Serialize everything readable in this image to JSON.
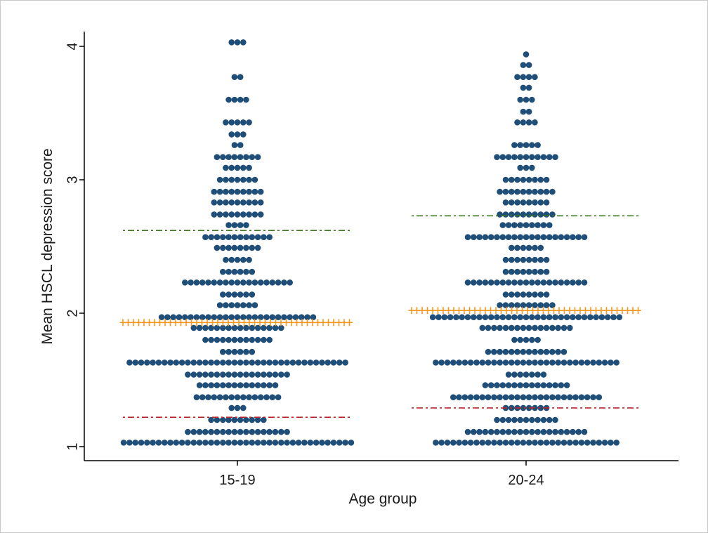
{
  "chart_data": {
    "type": "scatter",
    "subtype": "dot-strip",
    "title": "",
    "xlabel": "Age group",
    "ylabel": "Mean HSCL depression score",
    "ylim": [
      1,
      4
    ],
    "yticks": [
      1,
      2,
      3,
      4
    ],
    "categories": [
      "15-19",
      "20-24"
    ],
    "grid": false,
    "legend": "none",
    "colors": {
      "dots": "#1f4e79",
      "median_marker": "#f5961e",
      "upper_reference": "#3a7a1f",
      "lower_reference": "#b5282a",
      "axis": "#000000"
    },
    "groups": [
      {
        "category": "15-19",
        "median": 1.93,
        "upper_line": 2.62,
        "lower_line": 1.22,
        "dot_rows": [
          {
            "y": 1.03,
            "count": 40
          },
          {
            "y": 1.11,
            "count": 18
          },
          {
            "y": 1.2,
            "count": 10
          },
          {
            "y": 1.29,
            "count": 3
          },
          {
            "y": 1.37,
            "count": 15
          },
          {
            "y": 1.46,
            "count": 14
          },
          {
            "y": 1.54,
            "count": 18
          },
          {
            "y": 1.63,
            "count": 38
          },
          {
            "y": 1.71,
            "count": 6
          },
          {
            "y": 1.8,
            "count": 12
          },
          {
            "y": 1.89,
            "count": 16
          },
          {
            "y": 1.97,
            "count": 27
          },
          {
            "y": 2.06,
            "count": 7
          },
          {
            "y": 2.14,
            "count": 6
          },
          {
            "y": 2.23,
            "count": 19
          },
          {
            "y": 2.31,
            "count": 6
          },
          {
            "y": 2.4,
            "count": 5
          },
          {
            "y": 2.49,
            "count": 8
          },
          {
            "y": 2.57,
            "count": 12
          },
          {
            "y": 2.66,
            "count": 4
          },
          {
            "y": 2.74,
            "count": 9
          },
          {
            "y": 2.83,
            "count": 9
          },
          {
            "y": 2.91,
            "count": 9
          },
          {
            "y": 3.0,
            "count": 7
          },
          {
            "y": 3.09,
            "count": 5
          },
          {
            "y": 3.17,
            "count": 8
          },
          {
            "y": 3.26,
            "count": 2
          },
          {
            "y": 3.34,
            "count": 3
          },
          {
            "y": 3.43,
            "count": 5
          },
          {
            "y": 3.6,
            "count": 4
          },
          {
            "y": 3.77,
            "count": 2
          },
          {
            "y": 4.03,
            "count": 3
          }
        ]
      },
      {
        "category": "20-24",
        "median": 2.02,
        "upper_line": 2.73,
        "lower_line": 1.29,
        "dot_rows": [
          {
            "y": 1.03,
            "count": 32
          },
          {
            "y": 1.11,
            "count": 21
          },
          {
            "y": 1.2,
            "count": 11
          },
          {
            "y": 1.29,
            "count": 8
          },
          {
            "y": 1.37,
            "count": 26
          },
          {
            "y": 1.46,
            "count": 15
          },
          {
            "y": 1.54,
            "count": 7
          },
          {
            "y": 1.63,
            "count": 32
          },
          {
            "y": 1.71,
            "count": 14
          },
          {
            "y": 1.8,
            "count": 5
          },
          {
            "y": 1.89,
            "count": 16
          },
          {
            "y": 1.97,
            "count": 33
          },
          {
            "y": 2.06,
            "count": 10
          },
          {
            "y": 2.14,
            "count": 8
          },
          {
            "y": 2.23,
            "count": 21
          },
          {
            "y": 2.31,
            "count": 8
          },
          {
            "y": 2.4,
            "count": 8
          },
          {
            "y": 2.49,
            "count": 6
          },
          {
            "y": 2.57,
            "count": 21
          },
          {
            "y": 2.66,
            "count": 9
          },
          {
            "y": 2.74,
            "count": 10
          },
          {
            "y": 2.83,
            "count": 8
          },
          {
            "y": 2.91,
            "count": 10
          },
          {
            "y": 3.0,
            "count": 8
          },
          {
            "y": 3.09,
            "count": 3
          },
          {
            "y": 3.17,
            "count": 11
          },
          {
            "y": 3.26,
            "count": 5
          },
          {
            "y": 3.43,
            "count": 4
          },
          {
            "y": 3.51,
            "count": 2
          },
          {
            "y": 3.6,
            "count": 3
          },
          {
            "y": 3.69,
            "count": 2
          },
          {
            "y": 3.77,
            "count": 4
          },
          {
            "y": 3.86,
            "count": 2
          },
          {
            "y": 3.94,
            "count": 1
          }
        ]
      }
    ]
  }
}
